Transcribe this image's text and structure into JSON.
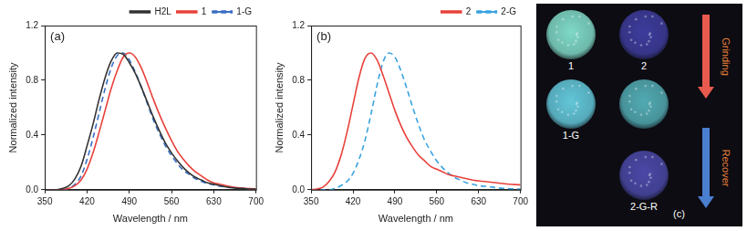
{
  "chart_data": [
    {
      "type": "line",
      "title": "(a)",
      "x_label": "Wavelength / nm",
      "y_label": "Normalized intensity",
      "x": [
        350,
        360,
        370,
        380,
        390,
        400,
        410,
        420,
        430,
        440,
        450,
        460,
        470,
        480,
        490,
        500,
        510,
        520,
        530,
        540,
        550,
        560,
        570,
        580,
        590,
        600,
        610,
        620,
        630,
        640,
        650,
        660,
        670,
        680,
        690,
        700
      ],
      "series": [
        {
          "name": "H2L",
          "color": "#333333",
          "line_style": "solid",
          "values": [
            0,
            0,
            0,
            0.01,
            0.03,
            0.08,
            0.17,
            0.32,
            0.48,
            0.66,
            0.82,
            0.94,
            1.0,
            0.99,
            0.93,
            0.85,
            0.75,
            0.64,
            0.53,
            0.43,
            0.34,
            0.27,
            0.21,
            0.16,
            0.12,
            0.09,
            0.07,
            0.05,
            0.04,
            0.03,
            0.02,
            0.015,
            0.01,
            0.01,
            0.005,
            0.005
          ]
        },
        {
          "name": "1",
          "color": "#e8413b",
          "line_style": "solid",
          "values": [
            0,
            0,
            0,
            0,
            0.01,
            0.03,
            0.07,
            0.15,
            0.27,
            0.42,
            0.58,
            0.74,
            0.87,
            0.97,
            1.0,
            0.97,
            0.89,
            0.78,
            0.66,
            0.55,
            0.45,
            0.36,
            0.28,
            0.22,
            0.17,
            0.13,
            0.1,
            0.07,
            0.05,
            0.04,
            0.03,
            0.02,
            0.015,
            0.01,
            0.008,
            0.005
          ]
        },
        {
          "name": "1-G",
          "color": "#3a6fc4",
          "line_style": "dashed",
          "values": [
            0,
            0,
            0,
            0,
            0.01,
            0.04,
            0.1,
            0.22,
            0.38,
            0.56,
            0.74,
            0.89,
            0.98,
            1.0,
            0.95,
            0.86,
            0.75,
            0.63,
            0.51,
            0.41,
            0.32,
            0.25,
            0.19,
            0.14,
            0.11,
            0.08,
            0.06,
            0.045,
            0.035,
            0.025,
            0.02,
            0.015,
            0.01,
            0.008,
            0.005,
            0.004
          ]
        }
      ],
      "xlim": [
        350,
        700
      ],
      "xticks": [
        350,
        420,
        490,
        560,
        630,
        700
      ],
      "ylim": [
        0,
        1.2
      ],
      "yticks": [
        {
          "value": 0,
          "label": "0.0"
        },
        0.4,
        0.8,
        1.2
      ],
      "grid": false,
      "legend": "upper right"
    },
    {
      "type": "line",
      "title": "(b)",
      "x_label": "Wavelength / nm",
      "y_label": "Normalized intensity",
      "x": [
        350,
        360,
        370,
        380,
        390,
        400,
        410,
        420,
        430,
        440,
        450,
        460,
        470,
        480,
        490,
        500,
        510,
        520,
        530,
        540,
        550,
        560,
        570,
        580,
        590,
        600,
        610,
        620,
        630,
        640,
        650,
        660,
        670,
        680,
        690,
        700
      ],
      "series": [
        {
          "name": "2",
          "color": "#e8413b",
          "line_style": "solid",
          "values": [
            0,
            0.005,
            0.02,
            0.06,
            0.13,
            0.25,
            0.42,
            0.62,
            0.82,
            0.96,
            1.0,
            0.95,
            0.84,
            0.71,
            0.58,
            0.47,
            0.38,
            0.31,
            0.25,
            0.21,
            0.17,
            0.15,
            0.13,
            0.11,
            0.1,
            0.09,
            0.08,
            0.07,
            0.065,
            0.06,
            0.055,
            0.05,
            0.045,
            0.04,
            0.038,
            0.035
          ]
        },
        {
          "name": "2-G",
          "color": "#3aa3e0",
          "line_style": "dashed",
          "values": [
            0,
            0,
            0,
            0,
            0.01,
            0.03,
            0.06,
            0.12,
            0.22,
            0.36,
            0.55,
            0.76,
            0.93,
            1.0,
            0.97,
            0.87,
            0.74,
            0.6,
            0.47,
            0.36,
            0.28,
            0.21,
            0.16,
            0.12,
            0.09,
            0.07,
            0.05,
            0.04,
            0.03,
            0.025,
            0.02,
            0.015,
            0.01,
            0.008,
            0.006,
            0.005
          ]
        }
      ],
      "xlim": [
        350,
        700
      ],
      "xticks": [
        350,
        420,
        490,
        560,
        630,
        700
      ],
      "ylim": [
        0,
        1.2
      ],
      "yticks": [
        {
          "value": 0,
          "label": "0.0"
        },
        0.4,
        0.8,
        1.2
      ],
      "grid": false,
      "legend": "upper right"
    }
  ],
  "photo_panel": {
    "title": "(c)",
    "samples": [
      {
        "label": "1",
        "color": "#7fd8c6"
      },
      {
        "label": "2",
        "color": "#3d3c9c"
      },
      {
        "label": "1-G",
        "color": "#62c6d8"
      },
      {
        "label": null,
        "color": "#52aab2"
      },
      {
        "label": "2-G-R",
        "color": "#4a48a6"
      }
    ],
    "arrows": [
      {
        "label": "Grinding",
        "color": "#e85a4e"
      },
      {
        "label": "Recover",
        "color": "#4a7fd0"
      }
    ]
  }
}
